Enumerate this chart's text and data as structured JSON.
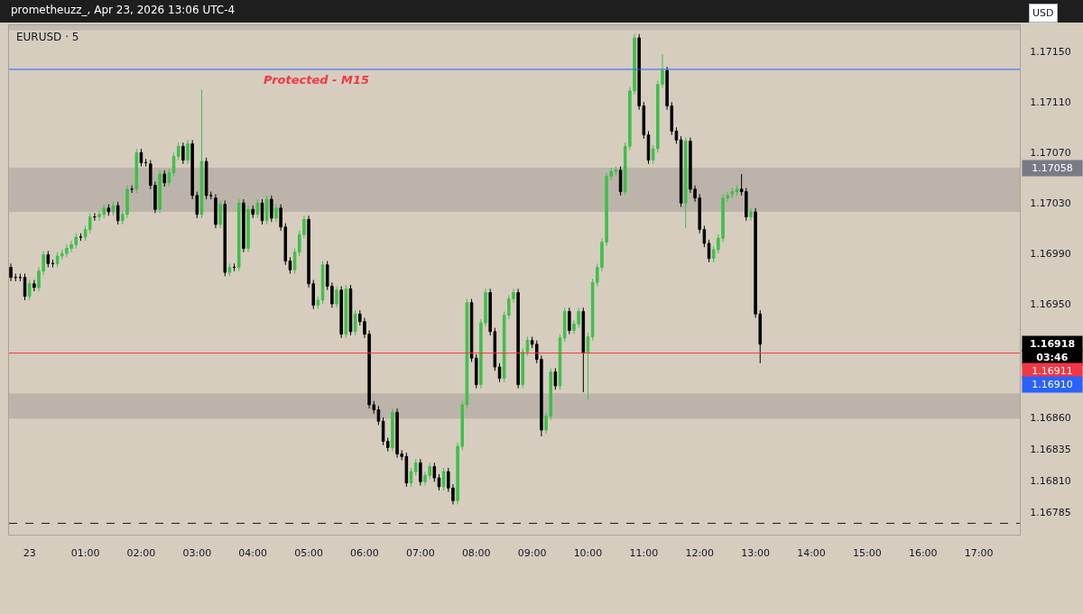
{
  "chart_data": {
    "type": "candlestick",
    "title": "EURUSD · 5",
    "subtitle": "prometheuzz_, Apr 23, 2026 13:06 UTC-4",
    "colors": [
      "#000000",
      "#000000",
      "#000000",
      "#000000",
      "#3fbf4a",
      "#000000",
      "#3fbf4a",
      "#3fbf4a",
      "#000000",
      "#000000",
      "#3fbf4a",
      "#3fbf4a",
      "#3fbf4a",
      "#3fbf4a",
      "#3fbf4a",
      "#000000",
      "#3fbf4a",
      "#3fbf4a",
      "#000000",
      "#3fbf4a",
      "#3fbf4a",
      "#000000",
      "#3fbf4a",
      "#000000",
      "#3fbf4a",
      "#3fbf4a",
      "#000000",
      "#3fbf4a",
      "#000000",
      "#000000",
      "#000000",
      "#000000",
      "#3fbf4a",
      "#000000",
      "#3fbf4a",
      "#3fbf4a",
      "#3fbf4a",
      "#000000",
      "#3fbf4a",
      "#000000",
      "#000000",
      "#3fbf4a",
      "#000000",
      "#000000",
      "#000000",
      "#3fbf4a",
      "#000000",
      "#3fbf4a",
      "#000000",
      "#3fbf4a",
      "#000000",
      "#3fbf4a",
      "#000000",
      "#3fbf4a",
      "#000000",
      "#3fbf4a",
      "#000000",
      "#3fbf4a",
      "#000000",
      "#000000",
      "#000000",
      "#3fbf4a",
      "#3fbf4a",
      "#3fbf4a",
      "#000000",
      "#000000",
      "#3fbf4a",
      "#3fbf4a",
      "#000000",
      "#000000",
      "#3fbf4a",
      "#000000",
      "#3fbf4a",
      "#000000",
      "#3fbf4a",
      "#000000",
      "#000000",
      "#000000",
      "#000000",
      "#000000",
      "#000000",
      "#000000",
      "#3fbf4a",
      "#000000",
      "#000000",
      "#000000",
      "#3fbf4a",
      "#3fbf4a",
      "#000000",
      "#3fbf4a",
      "#3fbf4a",
      "#000000",
      "#000000",
      "#3fbf4a",
      "#000000",
      "#000000",
      "#3fbf4a",
      "#3fbf4a",
      "#3fbf4a",
      "#000000",
      "#000000",
      "#3fbf4a",
      "#3fbf4a",
      "#000000",
      "#000000",
      "#000000",
      "#3fbf4a",
      "#3fbf4a",
      "#3fbf4a",
      "#000000",
      "#3fbf4a",
      "#3fbf4a",
      "#000000",
      "#000000",
      "#000000",
      "#3fbf4a",
      "#3fbf4a",
      "#000000",
      "#3fbf4a",
      "#3fbf4a",
      "#000000",
      "#3fbf4a",
      "#3fbf4a",
      "#000000",
      "#3fbf4a",
      "#3fbf4a",
      "#3fbf4a",
      "#3fbf4a",
      "#3fbf4a",
      "#3fbf4a",
      "#3fbf4a",
      "#000000",
      "#3fbf4a",
      "#3fbf4a",
      "#3fbf4a",
      "#000000",
      "#000000",
      "#000000",
      "#3fbf4a",
      "#3fbf4a",
      "#3fbf4a",
      "#000000",
      "#000000",
      "#000000",
      "#000000",
      "#3fbf4a",
      "#000000",
      "#000000",
      "#000000",
      "#000000",
      "#000000",
      "#3fbf4a",
      "#3fbf4a",
      "#3fbf4a",
      "#3fbf4a",
      "#3fbf4a",
      "#3fbf4a",
      "#000000",
      "#000000",
      "#3fbf4a",
      "#000000",
      "#000000"
    ],
    "x": [
      "2026-04-22T23:40",
      "2026-04-22T23:45",
      "2026-04-22T23:50",
      "2026-04-22T23:55",
      "2026-04-23T00:00",
      "2026-04-23T00:05",
      "2026-04-23T00:10",
      "2026-04-23T00:15",
      "2026-04-23T00:20",
      "2026-04-23T00:25",
      "2026-04-23T00:30",
      "2026-04-23T00:35",
      "2026-04-23T00:40",
      "2026-04-23T00:45",
      "2026-04-23T00:50",
      "2026-04-23T00:55",
      "2026-04-23T01:00",
      "2026-04-23T01:05",
      "2026-04-23T01:10",
      "2026-04-23T01:15",
      "2026-04-23T01:20",
      "2026-04-23T01:25",
      "2026-04-23T01:30",
      "2026-04-23T01:35",
      "2026-04-23T01:40",
      "2026-04-23T01:45",
      "2026-04-23T01:50",
      "2026-04-23T01:55",
      "2026-04-23T02:00",
      "2026-04-23T02:05",
      "2026-04-23T02:10",
      "2026-04-23T02:15",
      "2026-04-23T02:20",
      "2026-04-23T02:25",
      "2026-04-23T02:30",
      "2026-04-23T02:35",
      "2026-04-23T02:40",
      "2026-04-23T02:45",
      "2026-04-23T02:50",
      "2026-04-23T02:55",
      "2026-04-23T03:00",
      "2026-04-23T03:05",
      "2026-04-23T03:10",
      "2026-04-23T03:15",
      "2026-04-23T03:20",
      "2026-04-23T03:25",
      "2026-04-23T03:30",
      "2026-04-23T03:35",
      "2026-04-23T03:40",
      "2026-04-23T03:45",
      "2026-04-23T03:50",
      "2026-04-23T03:55",
      "2026-04-23T04:00",
      "2026-04-23T04:05",
      "2026-04-23T04:10",
      "2026-04-23T04:15",
      "2026-04-23T04:20",
      "2026-04-23T04:25",
      "2026-04-23T04:30",
      "2026-04-23T04:35",
      "2026-04-23T04:40",
      "2026-04-23T04:45",
      "2026-04-23T04:50",
      "2026-04-23T04:55",
      "2026-04-23T05:00",
      "2026-04-23T05:05",
      "2026-04-23T05:10",
      "2026-04-23T05:15",
      "2026-04-23T05:20",
      "2026-04-23T05:25",
      "2026-04-23T05:30",
      "2026-04-23T05:35",
      "2026-04-23T05:40",
      "2026-04-23T05:45",
      "2026-04-23T05:50",
      "2026-04-23T05:55",
      "2026-04-23T06:00",
      "2026-04-23T06:05",
      "2026-04-23T06:10",
      "2026-04-23T06:15",
      "2026-04-23T06:20",
      "2026-04-23T06:25",
      "2026-04-23T06:30",
      "2026-04-23T06:35",
      "2026-04-23T06:40",
      "2026-04-23T06:45",
      "2026-04-23T06:50",
      "2026-04-23T06:55",
      "2026-04-23T07:00",
      "2026-04-23T07:05",
      "2026-04-23T07:10",
      "2026-04-23T07:15",
      "2026-04-23T07:20",
      "2026-04-23T07:25",
      "2026-04-23T07:30",
      "2026-04-23T07:35",
      "2026-04-23T07:40",
      "2026-04-23T07:45",
      "2026-04-23T07:50",
      "2026-04-23T07:55",
      "2026-04-23T08:00",
      "2026-04-23T08:05",
      "2026-04-23T08:10",
      "2026-04-23T08:15",
      "2026-04-23T08:20",
      "2026-04-23T08:25",
      "2026-04-23T08:30",
      "2026-04-23T08:35",
      "2026-04-23T08:40",
      "2026-04-23T08:45",
      "2026-04-23T08:50",
      "2026-04-23T08:55",
      "2026-04-23T09:00",
      "2026-04-23T09:05",
      "2026-04-23T09:10",
      "2026-04-23T09:15",
      "2026-04-23T09:20",
      "2026-04-23T09:25",
      "2026-04-23T09:30",
      "2026-04-23T09:35",
      "2026-04-23T09:40",
      "2026-04-23T09:45",
      "2026-04-23T09:50",
      "2026-04-23T09:55",
      "2026-04-23T10:00",
      "2026-04-23T10:05",
      "2026-04-23T10:10",
      "2026-04-23T10:15",
      "2026-04-23T10:20",
      "2026-04-23T10:25",
      "2026-04-23T10:30",
      "2026-04-23T10:35",
      "2026-04-23T10:40",
      "2026-04-23T10:45",
      "2026-04-23T10:50",
      "2026-04-23T10:55",
      "2026-04-23T11:00",
      "2026-04-23T11:05",
      "2026-04-23T11:10",
      "2026-04-23T11:15",
      "2026-04-23T11:20",
      "2026-04-23T11:25",
      "2026-04-23T11:30",
      "2026-04-23T11:35",
      "2026-04-23T11:40",
      "2026-04-23T11:45",
      "2026-04-23T11:50",
      "2026-04-23T11:55",
      "2026-04-23T12:00",
      "2026-04-23T12:05",
      "2026-04-23T12:10",
      "2026-04-23T12:15",
      "2026-04-23T12:20",
      "2026-04-23T12:25",
      "2026-04-23T12:30",
      "2026-04-23T12:35",
      "2026-04-23T12:40",
      "2026-04-23T12:45",
      "2026-04-23T12:50",
      "2026-04-23T12:55",
      "2026-04-23T13:00",
      "2026-04-23T13:05"
    ],
    "ohlc": [
      [
        1.16979,
        1.16982,
        1.16968,
        1.16971
      ],
      [
        1.16971,
        1.16974,
        1.16968,
        1.16971
      ],
      [
        1.16971,
        1.16974,
        1.16968,
        1.16971
      ],
      [
        1.16971,
        1.16974,
        1.16953,
        1.16956
      ],
      [
        1.16956,
        1.16969,
        1.16953,
        1.16966
      ],
      [
        1.16966,
        1.16969,
        1.1696,
        1.16963
      ],
      [
        1.16963,
        1.16979,
        1.1696,
        1.16976
      ],
      [
        1.16976,
        1.16992,
        1.16973,
        1.16989
      ],
      [
        1.16989,
        1.16992,
        1.16979,
        1.16982
      ],
      [
        1.16982,
        1.16985,
        1.16979,
        1.16982
      ],
      [
        1.16982,
        1.16991,
        1.16979,
        1.16988
      ],
      [
        1.16988,
        1.16993,
        1.16985,
        1.1699
      ],
      [
        1.1699,
        1.16997,
        1.16987,
        1.16994
      ],
      [
        1.16994,
        1.17,
        1.16991,
        1.16997
      ],
      [
        1.16997,
        1.17006,
        1.16994,
        1.17003
      ],
      [
        1.17003,
        1.17006,
        1.17,
        1.17003
      ],
      [
        1.17003,
        1.17012,
        1.17,
        1.17009
      ],
      [
        1.17009,
        1.17022,
        1.17006,
        1.17019
      ],
      [
        1.17019,
        1.17022,
        1.17016,
        1.17019
      ],
      [
        1.17019,
        1.17024,
        1.17016,
        1.17021
      ],
      [
        1.17021,
        1.17029,
        1.17018,
        1.17026
      ],
      [
        1.17026,
        1.17029,
        1.1702,
        1.17023
      ],
      [
        1.17023,
        1.17031,
        1.1702,
        1.17028
      ],
      [
        1.17028,
        1.17031,
        1.17013,
        1.17016
      ],
      [
        1.17016,
        1.17024,
        1.17013,
        1.17021
      ],
      [
        1.17021,
        1.17044,
        1.17018,
        1.17041
      ],
      [
        1.17041,
        1.17044,
        1.17038,
        1.17041
      ],
      [
        1.17041,
        1.17073,
        1.17038,
        1.1707
      ],
      [
        1.1707,
        1.17073,
        1.17059,
        1.17062
      ],
      [
        1.17062,
        1.17065,
        1.17059,
        1.17062
      ],
      [
        1.17061,
        1.17064,
        1.17041,
        1.17044
      ],
      [
        1.17044,
        1.17047,
        1.17022,
        1.17025
      ],
      [
        1.17025,
        1.17056,
        1.17022,
        1.17053
      ],
      [
        1.17053,
        1.17056,
        1.17043,
        1.17046
      ],
      [
        1.17046,
        1.17057,
        1.17043,
        1.17054
      ],
      [
        1.17054,
        1.1707,
        1.17051,
        1.17067
      ],
      [
        1.17067,
        1.17078,
        1.17064,
        1.17075
      ],
      [
        1.17075,
        1.17078,
        1.17061,
        1.17064
      ],
      [
        1.17064,
        1.1708,
        1.17061,
        1.17077
      ],
      [
        1.17077,
        1.1708,
        1.17033,
        1.17036
      ],
      [
        1.17036,
        1.17039,
        1.17018,
        1.17021
      ],
      [
        1.17021,
        1.1712,
        1.17018,
        1.17063
      ],
      [
        1.17063,
        1.17066,
        1.17033,
        1.17036
      ],
      [
        1.17036,
        1.17039,
        1.17033,
        1.17036
      ],
      [
        1.17034,
        1.17037,
        1.1701,
        1.17013
      ],
      [
        1.17013,
        1.17032,
        1.1701,
        1.17029
      ],
      [
        1.17029,
        1.17032,
        1.16972,
        1.16975
      ],
      [
        1.16975,
        1.16982,
        1.16972,
        1.16979
      ],
      [
        1.16979,
        1.16982,
        1.16976,
        1.16979
      ],
      [
        1.16979,
        1.17033,
        1.16976,
        1.1703
      ],
      [
        1.1703,
        1.17033,
        1.16991,
        1.16994
      ],
      [
        1.16994,
        1.17028,
        1.16991,
        1.17025
      ],
      [
        1.17025,
        1.17028,
        1.17018,
        1.17021
      ],
      [
        1.17021,
        1.17033,
        1.17018,
        1.1703
      ],
      [
        1.1703,
        1.17033,
        1.17013,
        1.17016
      ],
      [
        1.17016,
        1.17036,
        1.17013,
        1.17033
      ],
      [
        1.17033,
        1.17036,
        1.17015,
        1.17018
      ],
      [
        1.17018,
        1.17029,
        1.17015,
        1.17026
      ],
      [
        1.17026,
        1.17029,
        1.17008,
        1.17011
      ],
      [
        1.17011,
        1.17014,
        1.16981,
        1.16984
      ],
      [
        1.16984,
        1.16987,
        1.16974,
        1.16977
      ],
      [
        1.16977,
        1.16994,
        1.16974,
        1.16991
      ],
      [
        1.16991,
        1.17008,
        1.16988,
        1.17005
      ],
      [
        1.17005,
        1.1702,
        1.17002,
        1.17017
      ],
      [
        1.17017,
        1.1702,
        1.16963,
        1.16966
      ],
      [
        1.16966,
        1.16969,
        1.16946,
        1.16949
      ],
      [
        1.16949,
        1.16956,
        1.16946,
        1.16953
      ],
      [
        1.16953,
        1.16984,
        1.1695,
        1.16981
      ],
      [
        1.16981,
        1.16984,
        1.16961,
        1.16964
      ],
      [
        1.16964,
        1.16967,
        1.16947,
        1.1695
      ],
      [
        1.1695,
        1.16964,
        1.16947,
        1.16961
      ],
      [
        1.16961,
        1.16964,
        1.16923,
        1.16926
      ],
      [
        1.16926,
        1.16965,
        1.16923,
        1.16962
      ],
      [
        1.16962,
        1.16965,
        1.16925,
        1.16928
      ],
      [
        1.16928,
        1.16945,
        1.16925,
        1.16942
      ],
      [
        1.16942,
        1.16945,
        1.16933,
        1.16936
      ],
      [
        1.16936,
        1.16939,
        1.16923,
        1.16926
      ],
      [
        1.16926,
        1.16929,
        1.16867,
        1.1687
      ],
      [
        1.1687,
        1.16873,
        1.16863,
        1.16866
      ],
      [
        1.16866,
        1.16869,
        1.16854,
        1.16857
      ],
      [
        1.16857,
        1.1686,
        1.16838,
        1.16841
      ],
      [
        1.16841,
        1.16844,
        1.16833,
        1.16836
      ],
      [
        1.16836,
        1.16867,
        1.16833,
        1.16864
      ],
      [
        1.16864,
        1.16867,
        1.16828,
        1.16831
      ],
      [
        1.16831,
        1.16834,
        1.16826,
        1.16829
      ],
      [
        1.16829,
        1.16832,
        1.16805,
        1.16808
      ],
      [
        1.16808,
        1.1682,
        1.16805,
        1.16817
      ],
      [
        1.16817,
        1.16827,
        1.16814,
        1.16824
      ],
      [
        1.16824,
        1.16827,
        1.16806,
        1.16809
      ],
      [
        1.16809,
        1.16817,
        1.16806,
        1.16814
      ],
      [
        1.16814,
        1.16824,
        1.16811,
        1.16821
      ],
      [
        1.16821,
        1.16824,
        1.16809,
        1.16812
      ],
      [
        1.16812,
        1.16815,
        1.16802,
        1.16805
      ],
      [
        1.16805,
        1.1682,
        1.16802,
        1.16817
      ],
      [
        1.16817,
        1.1682,
        1.16801,
        1.16804
      ],
      [
        1.16804,
        1.16807,
        1.16791,
        1.16794
      ],
      [
        1.16794,
        1.1684,
        1.16791,
        1.16837
      ],
      [
        1.16837,
        1.16873,
        1.16834,
        1.1687
      ],
      [
        1.1687,
        1.16954,
        1.16867,
        1.16951
      ],
      [
        1.16951,
        1.16954,
        1.16904,
        1.16907
      ],
      [
        1.16907,
        1.1691,
        1.16883,
        1.16886
      ],
      [
        1.16886,
        1.16938,
        1.16883,
        1.16935
      ],
      [
        1.16935,
        1.16962,
        1.16932,
        1.16959
      ],
      [
        1.16959,
        1.16962,
        1.16925,
        1.16928
      ],
      [
        1.16928,
        1.16931,
        1.16897,
        1.169
      ],
      [
        1.169,
        1.16903,
        1.16888,
        1.16891
      ],
      [
        1.16891,
        1.16944,
        1.16888,
        1.16941
      ],
      [
        1.16941,
        1.16957,
        1.16938,
        1.16954
      ],
      [
        1.16954,
        1.16962,
        1.16951,
        1.16959
      ],
      [
        1.16959,
        1.16962,
        1.16883,
        1.16886
      ],
      [
        1.16886,
        1.16915,
        1.16883,
        1.16912
      ],
      [
        1.16912,
        1.16924,
        1.16909,
        1.16921
      ],
      [
        1.16921,
        1.16924,
        1.16915,
        1.16918
      ],
      [
        1.16918,
        1.16921,
        1.16903,
        1.16906
      ],
      [
        1.16906,
        1.16909,
        1.16845,
        1.1685
      ],
      [
        1.1685,
        1.16864,
        1.16847,
        1.16861
      ],
      [
        1.16861,
        1.16899,
        1.16858,
        1.16896
      ],
      [
        1.16896,
        1.16899,
        1.16882,
        1.16885
      ],
      [
        1.16885,
        1.16926,
        1.16882,
        1.16923
      ],
      [
        1.16923,
        1.16947,
        1.1692,
        1.16944
      ],
      [
        1.16944,
        1.16947,
        1.16926,
        1.16929
      ],
      [
        1.16929,
        1.16937,
        1.16926,
        1.16934
      ],
      [
        1.16934,
        1.16947,
        1.16931,
        1.16944
      ],
      [
        1.16944,
        1.16947,
        1.1688,
        1.16911
      ],
      [
        1.16911,
        1.16927,
        1.16874,
        1.16924
      ],
      [
        1.16924,
        1.1697,
        1.16921,
        1.16967
      ],
      [
        1.16967,
        1.16982,
        1.16964,
        1.16979
      ],
      [
        1.16979,
        1.17002,
        1.16976,
        1.16999
      ],
      [
        1.16999,
        1.17054,
        1.16996,
        1.17051
      ],
      [
        1.17051,
        1.17058,
        1.17048,
        1.17055
      ],
      [
        1.17055,
        1.17059,
        1.17052,
        1.17056
      ],
      [
        1.17056,
        1.17059,
        1.17036,
        1.17039
      ],
      [
        1.17039,
        1.17078,
        1.17036,
        1.17075
      ],
      [
        1.17075,
        1.17122,
        1.17072,
        1.17119
      ],
      [
        1.17119,
        1.17164,
        1.17116,
        1.17161
      ],
      [
        1.17161,
        1.17164,
        1.17104,
        1.17107
      ],
      [
        1.17107,
        1.1711,
        1.17081,
        1.17084
      ],
      [
        1.17084,
        1.17087,
        1.17061,
        1.17064
      ],
      [
        1.17064,
        1.17076,
        1.17061,
        1.17073
      ],
      [
        1.17073,
        1.17127,
        1.1707,
        1.17124
      ],
      [
        1.17124,
        1.17148,
        1.17121,
        1.17135
      ],
      [
        1.17135,
        1.17138,
        1.17104,
        1.17107
      ],
      [
        1.17107,
        1.1711,
        1.17084,
        1.17087
      ],
      [
        1.17087,
        1.1709,
        1.17077,
        1.1708
      ],
      [
        1.1708,
        1.17083,
        1.17027,
        1.1703
      ],
      [
        1.1703,
        1.17082,
        1.1701,
        1.17079
      ],
      [
        1.17079,
        1.17082,
        1.17038,
        1.17041
      ],
      [
        1.17041,
        1.17044,
        1.17031,
        1.17034
      ],
      [
        1.17034,
        1.17037,
        1.17006,
        1.17009
      ],
      [
        1.17009,
        1.17012,
        1.16995,
        1.16998
      ],
      [
        1.16998,
        1.17001,
        1.16983,
        1.16986
      ],
      [
        1.16986,
        1.16996,
        1.16983,
        1.16993
      ],
      [
        1.16993,
        1.17005,
        1.1699,
        1.17002
      ],
      [
        1.17002,
        1.17037,
        1.16999,
        1.17034
      ],
      [
        1.17034,
        1.17039,
        1.17031,
        1.17036
      ],
      [
        1.17037,
        1.17042,
        1.17034,
        1.17039
      ],
      [
        1.17039,
        1.17044,
        1.17036,
        1.17041
      ],
      [
        1.17041,
        1.17053,
        1.17036,
        1.17039
      ],
      [
        1.17039,
        1.17042,
        1.17016,
        1.17019
      ],
      [
        1.17019,
        1.17026,
        1.17016,
        1.17023
      ],
      [
        1.17023,
        1.17026,
        1.16939,
        1.16942
      ],
      [
        1.16942,
        1.16945,
        1.16903,
        1.16918
      ]
    ],
    "xlim": [
      "2026-04-22T23:38",
      "2026-04-23T17:44"
    ],
    "xticks": [
      {
        "value": "2026-04-23T00:00",
        "label": "23"
      },
      {
        "value": "2026-04-23T01:00",
        "label": "01:00"
      },
      {
        "value": "2026-04-23T02:00",
        "label": "02:00"
      },
      {
        "value": "2026-04-23T03:00",
        "label": "03:00"
      },
      {
        "value": "2026-04-23T04:00",
        "label": "04:00"
      },
      {
        "value": "2026-04-23T05:00",
        "label": "05:00"
      },
      {
        "value": "2026-04-23T06:00",
        "label": "06:00"
      },
      {
        "value": "2026-04-23T07:00",
        "label": "07:00"
      },
      {
        "value": "2026-04-23T08:00",
        "label": "08:00"
      },
      {
        "value": "2026-04-23T09:00",
        "label": "09:00"
      },
      {
        "value": "2026-04-23T10:00",
        "label": "10:00"
      },
      {
        "value": "2026-04-23T11:00",
        "label": "11:00"
      },
      {
        "value": "2026-04-23T12:00",
        "label": "12:00"
      },
      {
        "value": "2026-04-23T13:00",
        "label": "13:00"
      },
      {
        "value": "2026-04-23T14:00",
        "label": "14:00"
      },
      {
        "value": "2026-04-23T15:00",
        "label": "15:00"
      },
      {
        "value": "2026-04-23T16:00",
        "label": "16:00"
      },
      {
        "value": "2026-04-23T17:00",
        "label": "17:00"
      }
    ],
    "ylim": [
      1.16767,
      1.17171
    ],
    "yticks": [
      {
        "value": 1.16785,
        "label": "1.16785"
      },
      {
        "value": 1.1681,
        "label": "1.16810"
      },
      {
        "value": 1.16835,
        "label": "1.16835"
      },
      {
        "value": 1.1686,
        "label": "1.16860"
      },
      {
        "value": 1.1695,
        "label": "1.16950"
      },
      {
        "value": 1.1699,
        "label": "1.16990"
      },
      {
        "value": 1.1703,
        "label": "1.17030"
      },
      {
        "value": 1.1707,
        "label": "1.17070"
      },
      {
        "value": 1.1711,
        "label": "1.17110"
      },
      {
        "value": 1.1715,
        "label": "1.17150"
      }
    ],
    "bands": [
      {
        "axis": "y",
        "from": 1.17167,
        "to": 1.17171,
        "color": "#c2bab0"
      },
      {
        "axis": "y",
        "from": 1.17023,
        "to": 1.17058,
        "color": "#bcb4aa",
        "label": "1.17058"
      },
      {
        "axis": "y",
        "from": 1.16859,
        "to": 1.16879,
        "color": "#bcb4aa"
      }
    ],
    "ref_lines": [
      {
        "axis": "y",
        "value": 1.17136,
        "color": "#2962ff",
        "label": "Protected - M15"
      },
      {
        "axis": "y",
        "value": 1.16911,
        "color": "#f23645",
        "label": "1.16911"
      },
      {
        "axis": "y",
        "value": 1.16776,
        "color": "#131722",
        "line_style": "dashed"
      }
    ],
    "annotations": [
      "1.16918",
      "03:46",
      "1.16910",
      "USD"
    ]
  }
}
